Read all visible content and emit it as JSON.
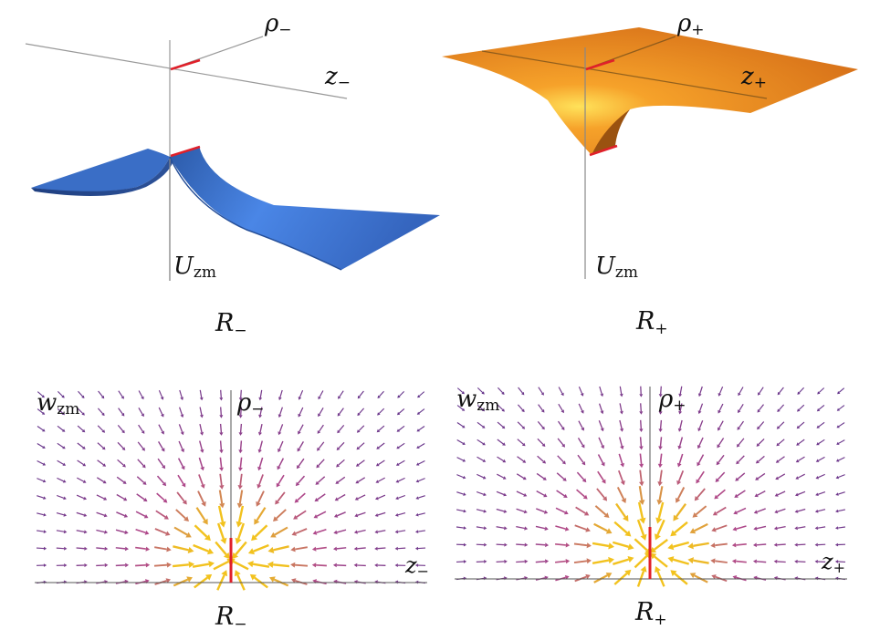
{
  "panels": {
    "top_left": {
      "axis_rho": {
        "main": "ρ",
        "sub": "−"
      },
      "axis_z": {
        "main": "z",
        "sub": "−"
      },
      "axis_u": {
        "main": "U",
        "sub": "zm"
      },
      "caption": {
        "main": "R",
        "sub": "−"
      },
      "surface_color": "#3f73cc"
    },
    "top_right": {
      "axis_rho": {
        "main": "ρ",
        "sub": "+"
      },
      "axis_z": {
        "main": "z",
        "sub": "+"
      },
      "axis_u": {
        "main": "U",
        "sub": "zm"
      },
      "caption": {
        "main": "R",
        "sub": "+"
      },
      "surface_color": "#e7861a"
    },
    "bottom_left": {
      "axis_w": {
        "main": "w",
        "sub": "zm"
      },
      "axis_rho": {
        "main": "ρ",
        "sub": "−"
      },
      "axis_z": {
        "main": "z",
        "sub": "−"
      },
      "caption": {
        "main": "R",
        "sub": "−"
      }
    },
    "bottom_right": {
      "axis_w": {
        "main": "w",
        "sub": "zm"
      },
      "axis_rho": {
        "main": "ρ",
        "sub": "+"
      },
      "axis_z": {
        "main": "z",
        "sub": "+"
      },
      "caption": {
        "main": "R",
        "sub": "+"
      }
    }
  },
  "colors": {
    "axis": "#888888",
    "segment": "#e0202a",
    "arrow_weak": "#3b2a8c",
    "arrow_mid": "#b0488a",
    "arrow_strong": "#f2c21e"
  }
}
